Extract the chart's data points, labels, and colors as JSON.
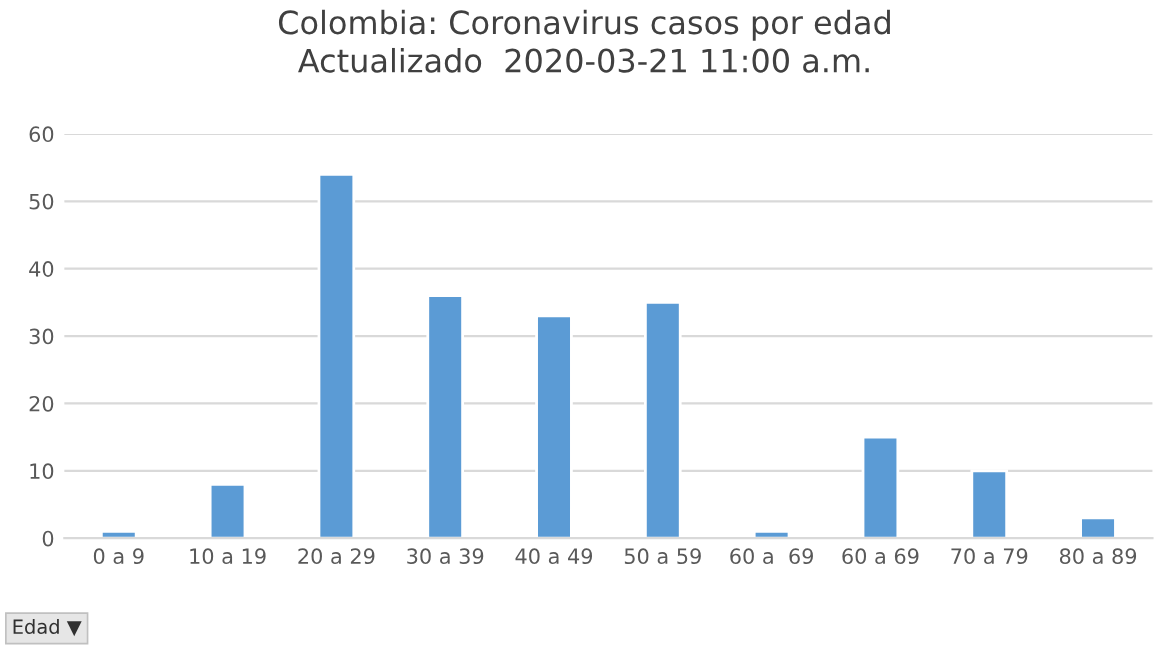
{
  "chart_data": {
    "type": "bar",
    "title": "Colombia: Coronavirus casos por edad\nActualizado  2020-03-21 11:00 a.m.",
    "categories": [
      "0 a 9",
      "10 a 19",
      "20 a 29",
      "30 a 39",
      "40 a 49",
      "50 a 59",
      "60 a  69",
      "60 a 69",
      "70 a 79",
      "80 a 89"
    ],
    "values": [
      1,
      8,
      54,
      36,
      33,
      35,
      1,
      15,
      10,
      3
    ],
    "color": "#5b9bd5",
    "ylim": [
      0,
      60
    ],
    "yticks": [
      0,
      10,
      20,
      30,
      40,
      50,
      60
    ],
    "grid": "y",
    "legend": false,
    "annotations": [
      "Edad ▼"
    ]
  }
}
